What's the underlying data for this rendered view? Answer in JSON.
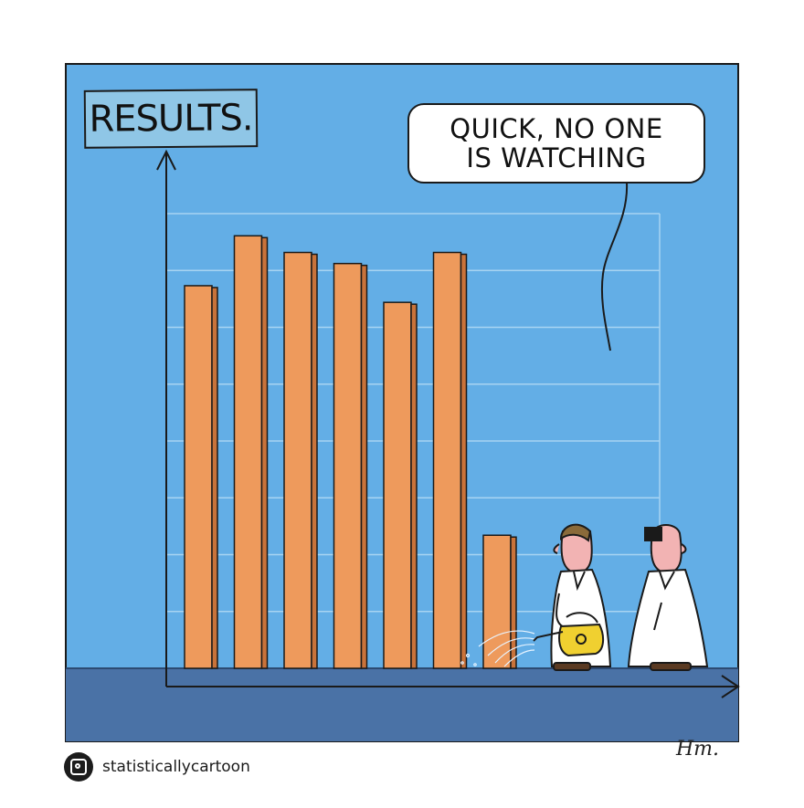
{
  "cartoon": {
    "title_sign": "RESULTS.",
    "speech_bubble": {
      "line1": "Quick, no one",
      "line2": "is watching"
    },
    "handle": "statisticallycartoon",
    "signature": "Hm.",
    "icon": "instagram-icon"
  },
  "colors": {
    "sky": "#63aee6",
    "floor": "#4a72a6",
    "bar": "#ee9a5c",
    "bar_shade": "#c9733a",
    "outline": "#1a1a1a",
    "title_box": "#8fc6e6"
  },
  "chart_data": {
    "type": "bar",
    "categories": [
      "",
      "",
      "",
      "",
      "",
      "",
      ""
    ],
    "values": [
      6.9,
      7.8,
      7.5,
      7.3,
      6.6,
      7.5,
      2.4
    ],
    "ylim": [
      0,
      8.2
    ],
    "grid": true
  }
}
